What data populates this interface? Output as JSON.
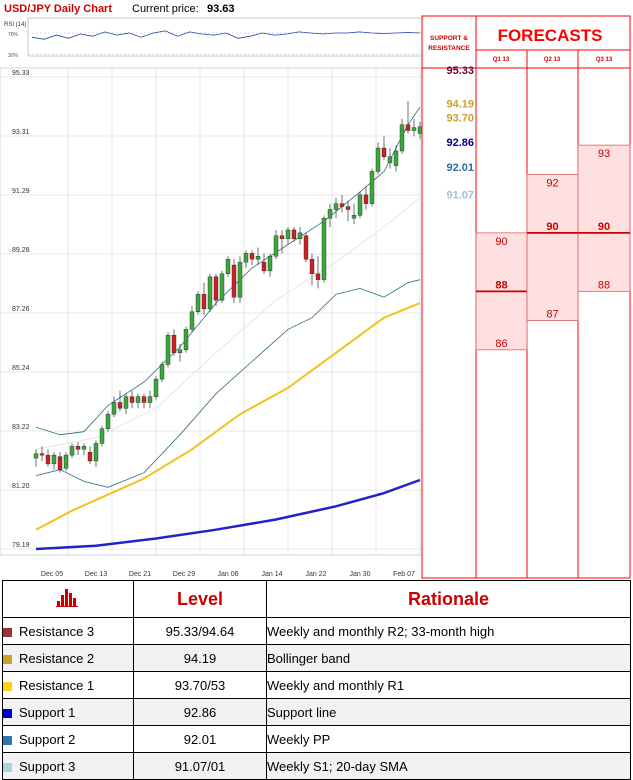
{
  "header": {
    "title": "USD/JPY Daily Chart",
    "price_label": "Current price:",
    "price_value": "93.63"
  },
  "rsi": {
    "label": "RSI (14)",
    "levels": [
      "70%",
      "30%"
    ]
  },
  "panel": {
    "support_resistance_title": [
      "SUPPORT &",
      "RESISTANCE"
    ],
    "forecasts_title": "FORECASTS",
    "quarters": [
      "Q1 13",
      "Q2 13",
      "Q3 13"
    ]
  },
  "levels_display": [
    {
      "label": "95.33",
      "value": 95.33,
      "color": "#5c1030",
      "line": "#5c1030"
    },
    {
      "label": "94.19",
      "value": 94.19,
      "color": "#c9a227",
      "line": "#e4c26a"
    },
    {
      "label": "93.70",
      "value": 93.7,
      "color": "#c9a227",
      "line": "#ffd21a"
    },
    {
      "label": "92.86",
      "value": 92.86,
      "color": "#00008b",
      "line": "#0000cc"
    },
    {
      "label": "92.01",
      "value": 92.01,
      "color": "#2e6b9e",
      "line": "#2e75b6"
    },
    {
      "label": "91.07",
      "value": 91.07,
      "color": "#9fc3d3",
      "line": "#b0d0dd"
    }
  ],
  "forecasts": [
    {
      "quarter": "Q1 13",
      "low": "86",
      "mid": "88",
      "high": "90"
    },
    {
      "quarter": "Q2 13",
      "low": "87",
      "mid": "90",
      "high": "92"
    },
    {
      "quarter": "Q3 13",
      "low": "88",
      "mid": "90",
      "high": "93"
    }
  ],
  "chart_data": {
    "type": "candlestick",
    "title": "USD/JPY Daily Chart",
    "x_ticks": [
      "Dec 05",
      "Dec 13",
      "Dec 21",
      "Dec 29",
      "Jan 06",
      "Jan 14",
      "Jan 22",
      "Jan 30",
      "Feb 07"
    ],
    "y_ticks": [
      "95.33",
      "93.31",
      "91.29",
      "89.28",
      "87.26",
      "85.24",
      "83.22",
      "81.20",
      "79.19"
    ],
    "ylim": [
      79.19,
      95.33
    ],
    "candles": [
      [
        82.3,
        82.6,
        82.0,
        82.45
      ],
      [
        82.45,
        82.7,
        82.2,
        82.4
      ],
      [
        82.4,
        82.6,
        82.0,
        82.1
      ],
      [
        82.1,
        82.5,
        81.9,
        82.4
      ],
      [
        82.35,
        82.5,
        81.8,
        81.9
      ],
      [
        81.95,
        82.5,
        81.85,
        82.4
      ],
      [
        82.4,
        82.8,
        82.3,
        82.7
      ],
      [
        82.7,
        82.85,
        82.4,
        82.6
      ],
      [
        82.6,
        82.8,
        82.4,
        82.7
      ],
      [
        82.5,
        82.7,
        82.1,
        82.2
      ],
      [
        82.2,
        82.9,
        82.0,
        82.8
      ],
      [
        82.8,
        83.4,
        82.7,
        83.3
      ],
      [
        83.3,
        83.9,
        83.2,
        83.8
      ],
      [
        83.8,
        84.4,
        83.7,
        84.2
      ],
      [
        84.2,
        84.6,
        83.9,
        84.0
      ],
      [
        84.0,
        84.5,
        83.8,
        84.4
      ],
      [
        84.4,
        84.6,
        84.0,
        84.2
      ],
      [
        84.2,
        84.5,
        84.0,
        84.4
      ],
      [
        84.4,
        84.5,
        84.0,
        84.2
      ],
      [
        84.2,
        84.6,
        84.0,
        84.4
      ],
      [
        84.4,
        85.1,
        84.3,
        85.0
      ],
      [
        85.0,
        85.6,
        84.9,
        85.5
      ],
      [
        85.5,
        86.6,
        85.4,
        86.5
      ],
      [
        86.5,
        86.7,
        85.8,
        85.9
      ],
      [
        85.9,
        86.2,
        85.6,
        86.0
      ],
      [
        86.0,
        86.8,
        85.9,
        86.7
      ],
      [
        86.7,
        87.5,
        86.6,
        87.3
      ],
      [
        87.3,
        88.0,
        87.2,
        87.9
      ],
      [
        87.9,
        88.3,
        87.2,
        87.4
      ],
      [
        87.4,
        88.6,
        87.3,
        88.5
      ],
      [
        88.5,
        88.6,
        87.5,
        87.7
      ],
      [
        87.7,
        88.7,
        87.6,
        88.6
      ],
      [
        88.6,
        89.2,
        88.5,
        89.1
      ],
      [
        88.9,
        89.1,
        87.6,
        87.8
      ],
      [
        87.8,
        89.2,
        87.6,
        89.0
      ],
      [
        89.0,
        89.4,
        88.8,
        89.3
      ],
      [
        89.3,
        89.4,
        88.9,
        89.1
      ],
      [
        89.1,
        89.5,
        88.9,
        89.2
      ],
      [
        89.0,
        89.3,
        88.6,
        88.7
      ],
      [
        88.7,
        89.3,
        88.5,
        89.2
      ],
      [
        89.2,
        90.1,
        89.1,
        89.9
      ],
      [
        89.9,
        90.1,
        89.3,
        89.8
      ],
      [
        89.8,
        90.2,
        89.6,
        90.1
      ],
      [
        90.1,
        90.2,
        89.7,
        89.8
      ],
      [
        89.8,
        90.2,
        89.6,
        90.0
      ],
      [
        89.9,
        90.0,
        89.0,
        89.1
      ],
      [
        89.1,
        89.3,
        88.2,
        88.6
      ],
      [
        88.6,
        89.2,
        88.1,
        88.4
      ],
      [
        88.4,
        90.6,
        88.3,
        90.5
      ],
      [
        90.5,
        91.0,
        90.2,
        90.8
      ],
      [
        90.8,
        91.2,
        90.5,
        91.0
      ],
      [
        91.0,
        91.3,
        90.7,
        90.9
      ],
      [
        90.9,
        91.1,
        90.4,
        90.8
      ],
      [
        90.5,
        91.0,
        90.3,
        90.6
      ],
      [
        90.6,
        91.4,
        90.5,
        91.3
      ],
      [
        91.3,
        91.6,
        90.8,
        91.0
      ],
      [
        91.0,
        92.2,
        90.9,
        92.1
      ],
      [
        92.1,
        93.1,
        92.0,
        92.9
      ],
      [
        92.9,
        93.3,
        92.5,
        92.6
      ],
      [
        92.4,
        92.9,
        92.2,
        92.6
      ],
      [
        92.3,
        93.0,
        92.1,
        92.8
      ],
      [
        92.8,
        93.9,
        92.7,
        93.7
      ],
      [
        93.7,
        94.5,
        93.4,
        93.5
      ],
      [
        93.5,
        93.9,
        93.3,
        93.6
      ],
      [
        93.4,
        93.8,
        93.2,
        93.63
      ]
    ],
    "sma50": [
      [
        0,
        79.85
      ],
      [
        6,
        80.5
      ],
      [
        18,
        81.6
      ],
      [
        26,
        82.6
      ],
      [
        34,
        83.8
      ],
      [
        42,
        84.7
      ],
      [
        50,
        85.9
      ],
      [
        58,
        87.1
      ],
      [
        64,
        87.6
      ]
    ],
    "sma200": [
      [
        0,
        79.19
      ],
      [
        10,
        79.3
      ],
      [
        20,
        79.55
      ],
      [
        30,
        79.85
      ],
      [
        40,
        80.2
      ],
      [
        50,
        80.65
      ],
      [
        58,
        81.1
      ],
      [
        64,
        81.55
      ]
    ],
    "bb_upper": [
      [
        0,
        83.35
      ],
      [
        4,
        83.1
      ],
      [
        8,
        83.2
      ],
      [
        12,
        84.1
      ],
      [
        18,
        84.9
      ],
      [
        24,
        86.1
      ],
      [
        30,
        87.6
      ],
      [
        36,
        88.8
      ],
      [
        42,
        89.6
      ],
      [
        48,
        90.4
      ],
      [
        54,
        91.4
      ],
      [
        58,
        92.1
      ],
      [
        62,
        93.7
      ],
      [
        64,
        94.3
      ]
    ],
    "bb_lower": [
      [
        0,
        81.7
      ],
      [
        4,
        81.9
      ],
      [
        8,
        81.5
      ],
      [
        12,
        81.3
      ],
      [
        18,
        81.8
      ],
      [
        24,
        83.1
      ],
      [
        30,
        84.5
      ],
      [
        36,
        85.6
      ],
      [
        42,
        86.7
      ],
      [
        46,
        87.1
      ],
      [
        50,
        87.9
      ],
      [
        54,
        88.1
      ],
      [
        58,
        87.8
      ],
      [
        62,
        88.3
      ],
      [
        64,
        88.4
      ]
    ],
    "bb_middle": [
      [
        0,
        82.6
      ],
      [
        10,
        83.0
      ],
      [
        20,
        84.0
      ],
      [
        30,
        85.9
      ],
      [
        40,
        87.7
      ],
      [
        50,
        89.0
      ],
      [
        58,
        90.2
      ],
      [
        64,
        91.2
      ]
    ],
    "rsi_values": [
      62,
      58,
      66,
      60,
      68,
      64,
      72,
      66,
      70,
      62,
      70,
      74,
      64,
      72,
      68,
      66,
      70,
      60,
      64,
      70,
      66,
      68,
      72,
      70,
      68,
      70,
      70,
      72,
      70,
      69,
      70,
      71,
      70
    ],
    "sr_levels": [
      95.33,
      94.19,
      93.7,
      92.86,
      92.01,
      91.07
    ]
  },
  "table": {
    "icon": "bar-chart-icon",
    "headers": [
      "Level",
      "Rationale"
    ],
    "rows": [
      {
        "name": "Resistance 3",
        "level": "95.33/94.64",
        "rationale": "Weekly and monthly R2; 33-month high",
        "color": "#953735"
      },
      {
        "name": "Resistance 2",
        "level": "94.19",
        "rationale": "Bollinger band",
        "color": "#c9a227"
      },
      {
        "name": "Resistance 1",
        "level": "93.70/53",
        "rationale": "Weekly and monthly R1",
        "color": "#ffd21a"
      },
      {
        "name": "Support 1",
        "level": "92.86",
        "rationale": "Support line",
        "color": "#0000cc"
      },
      {
        "name": "Support 2",
        "level": "92.01",
        "rationale": "Weekly PP",
        "color": "#2e75b6"
      },
      {
        "name": "Support 3",
        "level": "91.07/01",
        "rationale": "Weekly S1; 20-day SMA",
        "color": "#b0d0dd"
      }
    ]
  }
}
